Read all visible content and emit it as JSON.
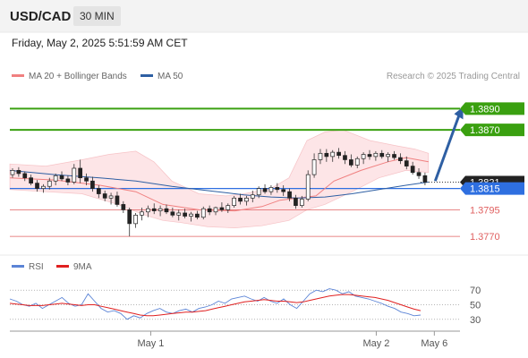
{
  "header": {
    "symbol": "USD/CAD",
    "timeframe": "30 MIN"
  },
  "datetime": "Friday, May 2, 2025 5:51:59 AM CET",
  "legend": {
    "ma20_label": "MA 20 + Bollinger Bands",
    "ma50_label": "MA 50",
    "ma20_color": "#f08080",
    "ma50_color": "#2e5fa3"
  },
  "credit": "Research © 2025 Trading Central",
  "rsi_legend": {
    "rsi_label": "RSI",
    "ma_label": "9MA",
    "rsi_color": "#5b84d6",
    "ma_color": "#e02020"
  },
  "chart_data": {
    "type": "candlestick",
    "y_range": [
      1.3755,
      1.3918
    ],
    "x_labels": [
      {
        "label": "May 1",
        "t": 0.313
      },
      {
        "label": "May 2",
        "t": 0.814
      },
      {
        "label": "May 6",
        "t": 0.943
      }
    ],
    "levels": [
      {
        "value": 1.389,
        "label": "1.3890",
        "color": "#3aa010",
        "style": "solid-thick"
      },
      {
        "value": 1.387,
        "label": "1.3870",
        "color": "#3aa010",
        "style": "solid-thick"
      },
      {
        "value": 1.3821,
        "label": "1.3821",
        "color": "#333333",
        "style": "dotted"
      },
      {
        "value": 1.3815,
        "label": "1.3815",
        "color": "#2e6fe0",
        "style": "solid"
      },
      {
        "value": 1.3795,
        "label": "1.3795",
        "color": "#e06060",
        "style": "thin"
      },
      {
        "value": 1.377,
        "label": "1.3770",
        "color": "#e06060",
        "style": "thin"
      }
    ],
    "candles": [
      [
        1.3828,
        1.3834,
        1.3825,
        1.3832
      ],
      [
        1.3832,
        1.3835,
        1.3826,
        1.3829
      ],
      [
        1.3829,
        1.3831,
        1.3822,
        1.3825
      ],
      [
        1.3825,
        1.3828,
        1.3818,
        1.382
      ],
      [
        1.382,
        1.3823,
        1.3812,
        1.3815
      ],
      [
        1.3815,
        1.3819,
        1.3811,
        1.3817
      ],
      [
        1.3817,
        1.3825,
        1.3814,
        1.3822
      ],
      [
        1.3822,
        1.3829,
        1.3818,
        1.3827
      ],
      [
        1.3827,
        1.3831,
        1.3822,
        1.3824
      ],
      [
        1.3824,
        1.3827,
        1.3818,
        1.3821
      ],
      [
        1.3821,
        1.3838,
        1.3819,
        1.3834
      ],
      [
        1.3834,
        1.3842,
        1.382,
        1.3825
      ],
      [
        1.3825,
        1.3829,
        1.3818,
        1.3822
      ],
      [
        1.3822,
        1.3826,
        1.3812,
        1.3815
      ],
      [
        1.3815,
        1.3818,
        1.3806,
        1.381
      ],
      [
        1.381,
        1.3813,
        1.3803,
        1.3806
      ],
      [
        1.3806,
        1.3811,
        1.38,
        1.3808
      ],
      [
        1.3808,
        1.3812,
        1.3798,
        1.38
      ],
      [
        1.38,
        1.3803,
        1.3792,
        1.3795
      ],
      [
        1.3795,
        1.3797,
        1.377,
        1.3782
      ],
      [
        1.3782,
        1.3792,
        1.3778,
        1.379
      ],
      [
        1.379,
        1.3797,
        1.3785,
        1.3793
      ],
      [
        1.3793,
        1.3799,
        1.3788,
        1.3796
      ],
      [
        1.3796,
        1.3801,
        1.3791,
        1.3794
      ],
      [
        1.3794,
        1.3799,
        1.3789,
        1.3796
      ],
      [
        1.3796,
        1.38,
        1.3791,
        1.3793
      ],
      [
        1.3793,
        1.3797,
        1.3788,
        1.379
      ],
      [
        1.379,
        1.3795,
        1.3785,
        1.3792
      ],
      [
        1.3792,
        1.3796,
        1.3787,
        1.3789
      ],
      [
        1.3789,
        1.3793,
        1.3784,
        1.3791
      ],
      [
        1.3791,
        1.3794,
        1.3786,
        1.3788
      ],
      [
        1.3788,
        1.3798,
        1.3786,
        1.3796
      ],
      [
        1.3796,
        1.3799,
        1.379,
        1.3793
      ],
      [
        1.3793,
        1.3798,
        1.379,
        1.3797
      ],
      [
        1.3797,
        1.3802,
        1.3793,
        1.3795
      ],
      [
        1.3795,
        1.3801,
        1.3792,
        1.3799
      ],
      [
        1.3799,
        1.3808,
        1.3797,
        1.3806
      ],
      [
        1.3806,
        1.381,
        1.38,
        1.3803
      ],
      [
        1.3803,
        1.3808,
        1.3799,
        1.3806
      ],
      [
        1.3806,
        1.3813,
        1.3802,
        1.3809
      ],
      [
        1.3809,
        1.3817,
        1.3806,
        1.3815
      ],
      [
        1.3815,
        1.3819,
        1.381,
        1.3812
      ],
      [
        1.3812,
        1.3818,
        1.3809,
        1.3816
      ],
      [
        1.3816,
        1.382,
        1.3811,
        1.3814
      ],
      [
        1.3814,
        1.3818,
        1.3808,
        1.3812
      ],
      [
        1.3812,
        1.3815,
        1.3803,
        1.3806
      ],
      [
        1.3806,
        1.3809,
        1.3796,
        1.3799
      ],
      [
        1.3799,
        1.3808,
        1.3797,
        1.3805
      ],
      [
        1.3805,
        1.3832,
        1.3803,
        1.3828
      ],
      [
        1.3828,
        1.3848,
        1.3825,
        1.3842
      ],
      [
        1.3842,
        1.3852,
        1.3838,
        1.3848
      ],
      [
        1.3848,
        1.3852,
        1.384,
        1.3845
      ],
      [
        1.3845,
        1.3851,
        1.384,
        1.3849
      ],
      [
        1.3849,
        1.3853,
        1.3843,
        1.3846
      ],
      [
        1.3846,
        1.385,
        1.3838,
        1.3842
      ],
      [
        1.3842,
        1.3847,
        1.3835,
        1.3837
      ],
      [
        1.3837,
        1.3845,
        1.3834,
        1.3843
      ],
      [
        1.3843,
        1.3849,
        1.3838,
        1.3847
      ],
      [
        1.3847,
        1.3851,
        1.3842,
        1.3845
      ],
      [
        1.3845,
        1.385,
        1.3841,
        1.3848
      ],
      [
        1.3848,
        1.3851,
        1.3843,
        1.3845
      ],
      [
        1.3845,
        1.3849,
        1.384,
        1.3847
      ],
      [
        1.3847,
        1.385,
        1.3842,
        1.3844
      ],
      [
        1.3844,
        1.3848,
        1.3838,
        1.3841
      ],
      [
        1.3841,
        1.3845,
        1.3833,
        1.3836
      ],
      [
        1.3836,
        1.384,
        1.3828,
        1.383
      ],
      [
        1.383,
        1.3834,
        1.3824,
        1.3827
      ],
      [
        1.3827,
        1.383,
        1.3818,
        1.3821
      ]
    ],
    "ma20": [
      [
        0,
        1.3825
      ],
      [
        0.1,
        1.3823
      ],
      [
        0.2,
        1.3818
      ],
      [
        0.28,
        1.3812
      ],
      [
        0.34,
        1.38
      ],
      [
        0.42,
        1.3795
      ],
      [
        0.5,
        1.3794
      ],
      [
        0.56,
        1.3798
      ],
      [
        0.6,
        1.3804
      ],
      [
        0.64,
        1.3806
      ],
      [
        0.68,
        1.3808
      ],
      [
        0.72,
        1.3822
      ],
      [
        0.78,
        1.3832
      ],
      [
        0.84,
        1.384
      ],
      [
        0.88,
        1.3844
      ],
      [
        0.93,
        1.384
      ]
    ],
    "ma50": [
      [
        0,
        1.3832
      ],
      [
        0.1,
        1.3828
      ],
      [
        0.2,
        1.3825
      ],
      [
        0.28,
        1.3822
      ],
      [
        0.36,
        1.3817
      ],
      [
        0.44,
        1.3813
      ],
      [
        0.52,
        1.3809
      ],
      [
        0.58,
        1.3807
      ],
      [
        0.64,
        1.3806
      ],
      [
        0.7,
        1.3807
      ],
      [
        0.76,
        1.381
      ],
      [
        0.82,
        1.3814
      ],
      [
        0.88,
        1.3818
      ],
      [
        0.93,
        1.3821
      ]
    ],
    "bb_upper": [
      [
        0,
        1.3838
      ],
      [
        0.08,
        1.3836
      ],
      [
        0.16,
        1.3842
      ],
      [
        0.22,
        1.3847
      ],
      [
        0.28,
        1.385
      ],
      [
        0.32,
        1.384
      ],
      [
        0.36,
        1.3822
      ],
      [
        0.42,
        1.381
      ],
      [
        0.48,
        1.3808
      ],
      [
        0.52,
        1.381
      ],
      [
        0.58,
        1.3815
      ],
      [
        0.62,
        1.3825
      ],
      [
        0.66,
        1.386
      ],
      [
        0.7,
        1.3868
      ],
      [
        0.74,
        1.387
      ],
      [
        0.8,
        1.386
      ],
      [
        0.86,
        1.3855
      ],
      [
        0.9,
        1.3852
      ],
      [
        0.93,
        1.3848
      ]
    ],
    "bb_lower": [
      [
        0.93,
        1.383
      ],
      [
        0.88,
        1.3832
      ],
      [
        0.82,
        1.3825
      ],
      [
        0.76,
        1.3812
      ],
      [
        0.7,
        1.38
      ],
      [
        0.66,
        1.3795
      ],
      [
        0.62,
        1.3785
      ],
      [
        0.56,
        1.378
      ],
      [
        0.5,
        1.3778
      ],
      [
        0.44,
        1.3779
      ],
      [
        0.38,
        1.3783
      ],
      [
        0.34,
        1.3785
      ],
      [
        0.3,
        1.379
      ],
      [
        0.24,
        1.38
      ],
      [
        0.16,
        1.381
      ],
      [
        0.08,
        1.3812
      ],
      [
        0,
        1.3814
      ]
    ],
    "projection": {
      "from": [
        0.945,
        1.3822
      ],
      "to": [
        1.005,
        1.389
      ]
    },
    "rsi": {
      "ticks": [
        70,
        50,
        30
      ],
      "y_range": [
        20,
        85
      ],
      "rsi_values": [
        58,
        55,
        50,
        48,
        52,
        45,
        50,
        55,
        60,
        52,
        48,
        50,
        65,
        55,
        45,
        40,
        42,
        38,
        30,
        35,
        32,
        38,
        42,
        45,
        40,
        38,
        42,
        44,
        40,
        45,
        47,
        50,
        55,
        52,
        58,
        60,
        62,
        58,
        55,
        60,
        55,
        52,
        58,
        50,
        45,
        55,
        65,
        70,
        68,
        72,
        70,
        65,
        68,
        62,
        60,
        58,
        55,
        52,
        48,
        45,
        40,
        38,
        35,
        36
      ],
      "ma_values": [
        52,
        51,
        50,
        49,
        49,
        49,
        50,
        51,
        52,
        51,
        50,
        49,
        50,
        50,
        48,
        46,
        44,
        42,
        40,
        38,
        36,
        35,
        35,
        36,
        37,
        38,
        39,
        40,
        40,
        41,
        42,
        44,
        46,
        48,
        50,
        52,
        54,
        55,
        56,
        57,
        56,
        55,
        55,
        54,
        53,
        54,
        56,
        58,
        60,
        62,
        63,
        64,
        64,
        63,
        62,
        61,
        60,
        58,
        56,
        53,
        50,
        47,
        44,
        42
      ]
    }
  }
}
